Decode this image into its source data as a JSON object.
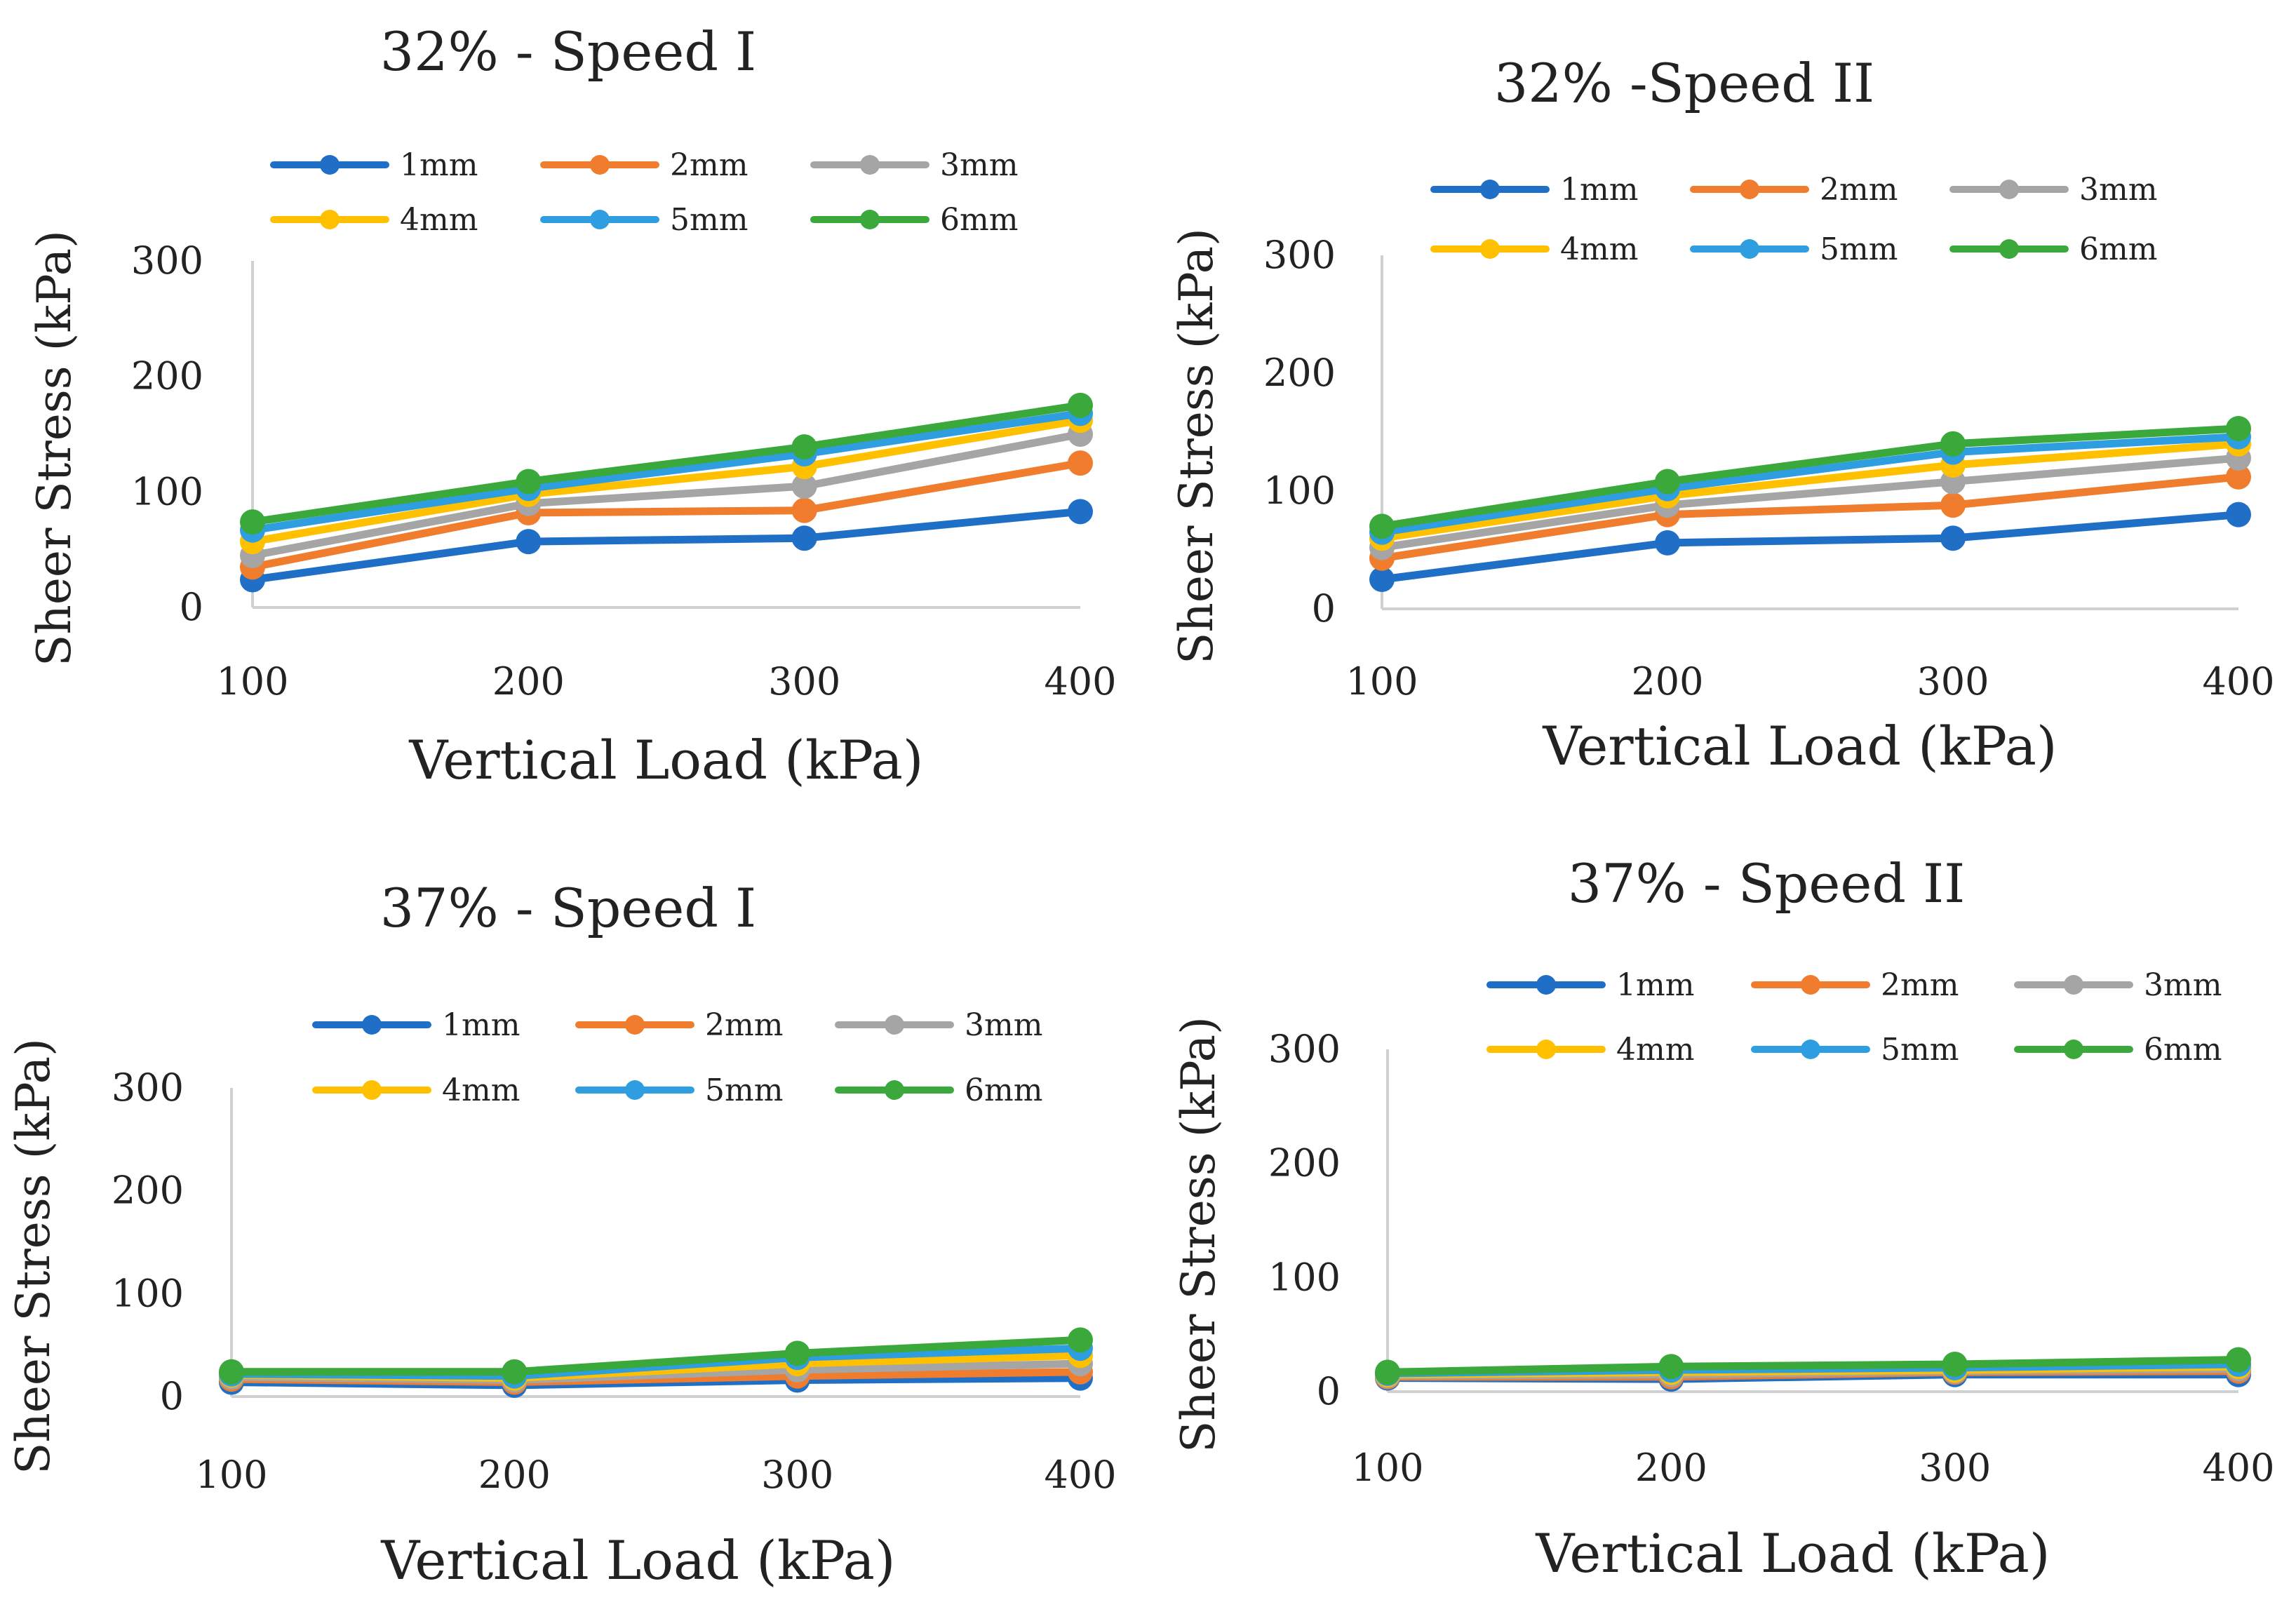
{
  "colors": {
    "1mm": "#1f6fc7",
    "2mm": "#f07c2e",
    "3mm": "#a5a5a5",
    "4mm": "#ffc000",
    "5mm": "#2e9ee0",
    "6mm": "#3aa83a"
  },
  "chart_data": [
    {
      "type": "line",
      "title": "32% - Speed I",
      "xlabel": "Vertical Load (kPa)",
      "ylabel": "Sheer Stress (kPa)",
      "x": [
        100,
        200,
        300,
        400
      ],
      "x_tick_labels": [
        "100",
        "200",
        "300",
        "400"
      ],
      "y_tick_labels": [
        "0",
        "100",
        "200",
        "300"
      ],
      "ylim": [
        0,
        300
      ],
      "grid": false,
      "legend_position": "top",
      "series": [
        {
          "name": "1mm",
          "values": [
            24,
            57,
            60,
            83
          ]
        },
        {
          "name": "2mm",
          "values": [
            35,
            82,
            84,
            125
          ]
        },
        {
          "name": "3mm",
          "values": [
            45,
            90,
            105,
            150
          ]
        },
        {
          "name": "4mm",
          "values": [
            57,
            98,
            122,
            162
          ]
        },
        {
          "name": "5mm",
          "values": [
            67,
            103,
            133,
            168
          ]
        },
        {
          "name": "6mm",
          "values": [
            74,
            109,
            139,
            175
          ]
        }
      ]
    },
    {
      "type": "line",
      "title": "32% -Speed II",
      "xlabel": "Vertical Load (kPa)",
      "ylabel": "Sheer Stress (kPa)",
      "x": [
        100,
        200,
        300,
        400
      ],
      "x_tick_labels": [
        "100",
        "200",
        "300",
        "400"
      ],
      "y_tick_labels": [
        "0",
        "100",
        "200",
        "300"
      ],
      "ylim": [
        0,
        300
      ],
      "grid": false,
      "legend_position": "top",
      "series": [
        {
          "name": "1mm",
          "values": [
            25,
            56,
            60,
            80
          ]
        },
        {
          "name": "2mm",
          "values": [
            43,
            80,
            88,
            112
          ]
        },
        {
          "name": "3mm",
          "values": [
            52,
            88,
            108,
            128
          ]
        },
        {
          "name": "4mm",
          "values": [
            60,
            96,
            122,
            140
          ]
        },
        {
          "name": "5mm",
          "values": [
            65,
            102,
            133,
            146
          ]
        },
        {
          "name": "6mm",
          "values": [
            70,
            108,
            140,
            153
          ]
        }
      ]
    },
    {
      "type": "line",
      "title": "37% - Speed I",
      "xlabel": "Vertical Load (kPa)",
      "ylabel": "Sheer Stress (kPa)",
      "x": [
        100,
        200,
        300,
        400
      ],
      "x_tick_labels": [
        "100",
        "200",
        "300",
        "400"
      ],
      "y_tick_labels": [
        "0",
        "100",
        "200",
        "300"
      ],
      "ylim": [
        0,
        300
      ],
      "grid": false,
      "legend_position": "top",
      "series": [
        {
          "name": "1mm",
          "values": [
            14,
            11,
            16,
            18
          ]
        },
        {
          "name": "2mm",
          "values": [
            17,
            14,
            20,
            24
          ]
        },
        {
          "name": "3mm",
          "values": [
            19,
            16,
            26,
            32
          ]
        },
        {
          "name": "4mm",
          "values": [
            21,
            18,
            32,
            40
          ]
        },
        {
          "name": "5mm",
          "values": [
            22,
            20,
            38,
            47
          ]
        },
        {
          "name": "6mm",
          "values": [
            24,
            24,
            42,
            55
          ]
        }
      ]
    },
    {
      "type": "line",
      "title": "37% - Speed II",
      "xlabel": "Vertical Load (kPa)",
      "ylabel": "Sheer Stress (kPa)",
      "x": [
        100,
        200,
        300,
        400
      ],
      "x_tick_labels": [
        "100",
        "200",
        "300",
        "400"
      ],
      "y_tick_labels": [
        "0",
        "100",
        "200",
        "300"
      ],
      "ylim": [
        0,
        300
      ],
      "grid": false,
      "legend_position": "top",
      "series": [
        {
          "name": "1mm",
          "values": [
            12,
            11,
            15,
            15
          ]
        },
        {
          "name": "2mm",
          "values": [
            13,
            13,
            17,
            18
          ]
        },
        {
          "name": "3mm",
          "values": [
            14,
            15,
            18,
            20
          ]
        },
        {
          "name": "4mm",
          "values": [
            15,
            17,
            19,
            22
          ]
        },
        {
          "name": "5mm",
          "values": [
            16,
            19,
            21,
            24
          ]
        },
        {
          "name": "6mm",
          "values": [
            17,
            22,
            24,
            28
          ]
        }
      ]
    }
  ]
}
